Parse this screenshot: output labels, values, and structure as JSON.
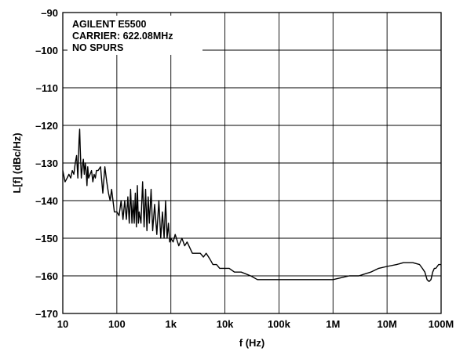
{
  "chart_data": {
    "type": "line",
    "title": "",
    "xlabel": "f (Hz)",
    "ylabel": "L[f] (dBc/Hz)",
    "xscale": "log",
    "xlim": [
      10,
      100000000
    ],
    "ylim": [
      -170,
      -90
    ],
    "grid": true,
    "x_ticks": [
      10,
      100,
      1000,
      10000,
      100000,
      1000000,
      10000000,
      100000000
    ],
    "x_tick_labels": [
      "10",
      "100",
      "1k",
      "10k",
      "100k",
      "1M",
      "10M",
      "100M"
    ],
    "y_ticks": [
      -170,
      -160,
      -150,
      -140,
      -130,
      -120,
      -110,
      -100,
      -90
    ],
    "y_tick_labels": [
      "–170",
      "–160",
      "–150",
      "–140",
      "–130",
      "–120",
      "–110",
      "–100",
      "–90"
    ],
    "annotation": [
      "AGILENT E5500",
      "CARRIER: 622.08MHz",
      "NO SPURS"
    ],
    "series": [
      {
        "x": [
          10,
          11,
          12,
          13,
          14,
          15,
          16,
          17,
          18,
          19,
          20,
          20.5,
          21,
          22,
          23,
          24,
          25,
          26,
          27,
          28,
          29,
          30,
          32,
          34,
          36,
          38,
          40,
          42,
          45,
          50,
          55,
          60,
          65,
          70,
          75,
          80,
          90,
          100,
          110,
          120,
          130,
          140,
          150,
          160,
          170,
          180,
          190,
          200,
          210,
          220,
          230,
          240,
          250,
          260,
          280,
          300,
          320,
          340,
          360,
          380,
          400,
          430,
          460,
          500,
          550,
          600,
          650,
          700,
          750,
          800,
          850,
          900,
          950,
          1000,
          1100,
          1200,
          1400,
          1600,
          1800,
          2000,
          2500,
          3000,
          3500,
          4000,
          4500,
          5000,
          5500,
          6000,
          7000,
          8000,
          9000,
          10000,
          12000,
          15000,
          20000,
          30000,
          40000,
          50000,
          70000,
          100000,
          200000,
          300000,
          500000,
          700000,
          1000000,
          2000000,
          3000000,
          5000000,
          7000000,
          10000000,
          15000000,
          20000000,
          30000000,
          40000000,
          45000000,
          50000000,
          55000000,
          60000000,
          65000000,
          70000000,
          75000000,
          80000000,
          90000000,
          100000000
        ],
        "y": [
          -132,
          -135,
          -134,
          -133,
          -134,
          -132,
          -133,
          -130,
          -128,
          -134,
          -124,
          -121,
          -126,
          -134,
          -131,
          -129,
          -133,
          -130,
          -132,
          -136,
          -131,
          -134,
          -133,
          -132,
          -135,
          -133,
          -134,
          -132,
          -132,
          -131,
          -138,
          -131,
          -135,
          -138,
          -140,
          -137,
          -143,
          -143,
          -144,
          -140,
          -145,
          -140,
          -145,
          -139,
          -146,
          -137,
          -146,
          -140,
          -146,
          -138,
          -147,
          -136,
          -146,
          -143,
          -146,
          -135,
          -147,
          -137,
          -148,
          -139,
          -146,
          -137,
          -148,
          -141,
          -149,
          -140,
          -150,
          -143,
          -150,
          -140,
          -150,
          -146,
          -151,
          -150,
          -151,
          -149,
          -152,
          -150,
          -152,
          -151,
          -154,
          -154,
          -154,
          -155,
          -154,
          -155,
          -156,
          -157,
          -157,
          -158,
          -158,
          -158,
          -158,
          -159,
          -159,
          -160,
          -161,
          -161,
          -161,
          -161,
          -161,
          -161,
          -161,
          -161,
          -161,
          -160,
          -160,
          -159,
          -158,
          -157.5,
          -157,
          -156.5,
          -156.5,
          -157,
          -158,
          -159,
          -161,
          -161.5,
          -161,
          -159,
          -158,
          -158,
          -157,
          -157
        ]
      }
    ]
  }
}
